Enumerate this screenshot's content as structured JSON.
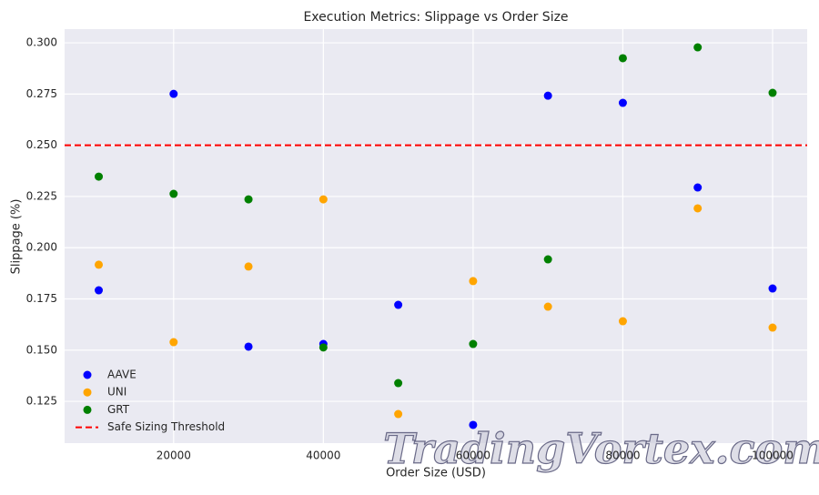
{
  "chart_data": {
    "type": "scatter",
    "title": "Execution Metrics: Slippage vs Order Size",
    "x_label": "Order Size (USD)",
    "y_label": "Slippage (%)",
    "x": [
      10000,
      20000,
      30000,
      40000,
      50000,
      60000,
      70000,
      80000,
      90000,
      100000
    ],
    "series": [
      {
        "name": "AAVE",
        "color": "#0000ff",
        "values": [
          0.1792,
          0.2751,
          0.1517,
          0.153,
          0.1721,
          0.1135,
          0.2742,
          0.2707,
          0.2294,
          0.1801
        ]
      },
      {
        "name": "UNI",
        "color": "#ffa500",
        "values": [
          0.1917,
          0.1539,
          0.1908,
          0.2236,
          0.1188,
          0.1837,
          0.1712,
          0.1641,
          0.2192,
          0.161
        ]
      },
      {
        "name": "GRT",
        "color": "#008000",
        "values": [
          0.2347,
          0.2263,
          0.2236,
          0.1513,
          0.1339,
          0.153,
          0.1943,
          0.2925,
          0.2978,
          0.2756
        ]
      }
    ],
    "threshold": {
      "name": "Safe Sizing Threshold",
      "value": 0.25,
      "color": "#ff0000"
    },
    "xlim": [
      5440,
      104620
    ],
    "ylim": [
      0.1046,
      0.3067
    ],
    "xticks": [
      20000,
      40000,
      60000,
      80000,
      100000
    ],
    "yticks": [
      0.125,
      {
        "value": 0.15,
        "label": "0.150"
      },
      0.175,
      {
        "value": 0.2,
        "label": "0.200"
      },
      0.225,
      {
        "value": 0.25,
        "label": "0.250"
      },
      0.275,
      {
        "value": 0.3,
        "label": "0.300"
      }
    ],
    "grid": true,
    "legend": "lower left",
    "watermark": "TradingVortex.com"
  }
}
